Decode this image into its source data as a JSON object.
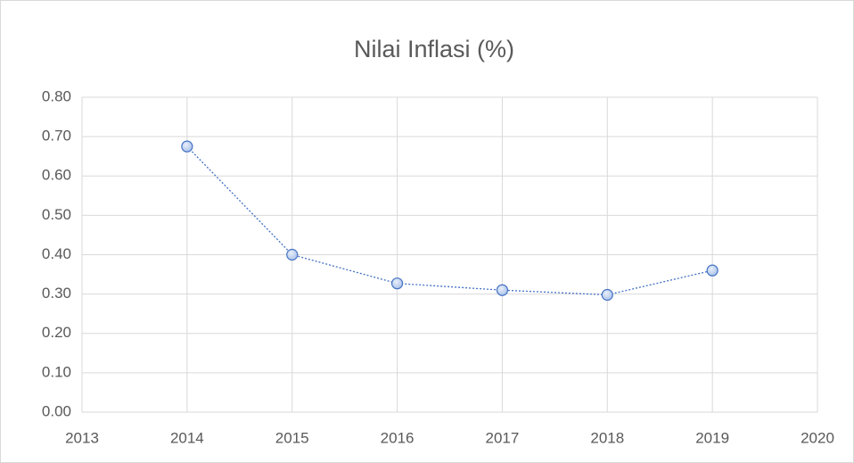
{
  "chart_data": {
    "type": "line",
    "title": "Nilai Inflasi (%)",
    "x": [
      2014,
      2015,
      2016,
      2017,
      2018,
      2019
    ],
    "series": [
      {
        "name": "Nilai Inflasi",
        "color": "#4472c4",
        "values": [
          0.675,
          0.4,
          0.327,
          0.31,
          0.298,
          0.36
        ]
      }
    ],
    "xlim": [
      2013,
      2020
    ],
    "xticks": [
      2013,
      2014,
      2015,
      2016,
      2017,
      2018,
      2019,
      2020
    ],
    "ylim": [
      0,
      0.8
    ],
    "yticks": [
      {
        "value": 0,
        "label": "0.00"
      },
      {
        "value": 0.1,
        "label": "0.10"
      },
      {
        "value": 0.2,
        "label": "0.20"
      },
      {
        "value": 0.3,
        "label": "0.30"
      },
      {
        "value": 0.4,
        "label": "0.40"
      },
      {
        "value": 0.5,
        "label": "0.50"
      },
      {
        "value": 0.6,
        "label": "0.60"
      },
      {
        "value": 0.7,
        "label": "0.70"
      },
      {
        "value": 0.8,
        "label": "0.80"
      }
    ],
    "grid": true
  }
}
